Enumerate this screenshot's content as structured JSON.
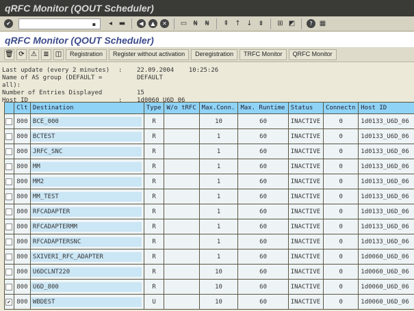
{
  "window": {
    "title": "qRFC Monitor (QOUT Scheduler)"
  },
  "toolbar": {
    "command_field": ""
  },
  "app": {
    "title": "qRFC Monitor (QOUT Scheduler)",
    "buttons": [
      "Registration",
      "Register without activation",
      "Deregistration",
      "TRFC Monitor",
      "QRFC Monitor"
    ]
  },
  "info": [
    {
      "label": "Last update (every 2 minutes)",
      "sep": ":",
      "value": "22.09.2004    10:25:26"
    },
    {
      "label": "Name of AS group (DEFAULT = all):",
      "sep": "",
      "value": "DEFAULT"
    },
    {
      "label": "Number of Entries Displayed",
      "sep": "",
      "value": "15"
    },
    {
      "label": "Host ID",
      "sep": ":",
      "value": "1d0060_U6D_06"
    }
  ],
  "table": {
    "headers": [
      "Clt",
      "Destination",
      "Type",
      "W/o tRFC",
      "Max.Conn.",
      "Max. Runtime",
      "Status",
      "Connectn",
      "Host ID"
    ],
    "rows": [
      {
        "checked": false,
        "cells": [
          "800",
          "BCE_000",
          "R",
          "",
          "10",
          "60",
          "INACTIVE",
          "0",
          "1d0133_U6D_06"
        ]
      },
      {
        "checked": false,
        "cells": [
          "800",
          "BCTEST",
          "R",
          "",
          "1",
          "60",
          "INACTIVE",
          "0",
          "1d0133_U6D_06"
        ]
      },
      {
        "checked": false,
        "cells": [
          "800",
          "JRFC_SNC",
          "R",
          "",
          "1",
          "60",
          "INACTIVE",
          "0",
          "1d0133_U6D_06"
        ]
      },
      {
        "checked": false,
        "cells": [
          "800",
          "MM",
          "R",
          "",
          "1",
          "60",
          "INACTIVE",
          "0",
          "1d0133_U6D_06"
        ]
      },
      {
        "checked": false,
        "cells": [
          "800",
          "MM2",
          "R",
          "",
          "1",
          "60",
          "INACTIVE",
          "0",
          "1d0133_U6D_06"
        ]
      },
      {
        "checked": false,
        "cells": [
          "800",
          "MM_TEST",
          "R",
          "",
          "1",
          "60",
          "INACTIVE",
          "0",
          "1d0133_U6D_06"
        ]
      },
      {
        "checked": false,
        "cells": [
          "800",
          "RFCADAPTER",
          "R",
          "",
          "1",
          "60",
          "INACTIVE",
          "0",
          "1d0133_U6D_06"
        ]
      },
      {
        "checked": false,
        "cells": [
          "800",
          "RFCADAPTERMM",
          "R",
          "",
          "1",
          "60",
          "INACTIVE",
          "0",
          "1d0133_U6D_06"
        ]
      },
      {
        "checked": false,
        "cells": [
          "800",
          "RFCADAPTERSNC",
          "R",
          "",
          "1",
          "60",
          "INACTIVE",
          "0",
          "1d0133_U6D_06"
        ]
      },
      {
        "checked": false,
        "cells": [
          "800",
          "SXIVERI_RFC_ADAPTER",
          "R",
          "",
          "1",
          "60",
          "INACTIVE",
          "0",
          "1d0060_U6D_06"
        ]
      },
      {
        "checked": false,
        "cells": [
          "800",
          "U6DCLNT220",
          "R",
          "",
          "10",
          "60",
          "INACTIVE",
          "0",
          "1d0060_U6D_06"
        ]
      },
      {
        "checked": false,
        "cells": [
          "800",
          "U6D_800",
          "R",
          "",
          "10",
          "60",
          "INACTIVE",
          "0",
          "1d0060_U6D_06"
        ]
      },
      {
        "checked": true,
        "cells": [
          "800",
          "WBDEST",
          "U",
          "",
          "10",
          "60",
          "INACTIVE",
          "0",
          "1d0060_U6D_06"
        ]
      }
    ]
  }
}
